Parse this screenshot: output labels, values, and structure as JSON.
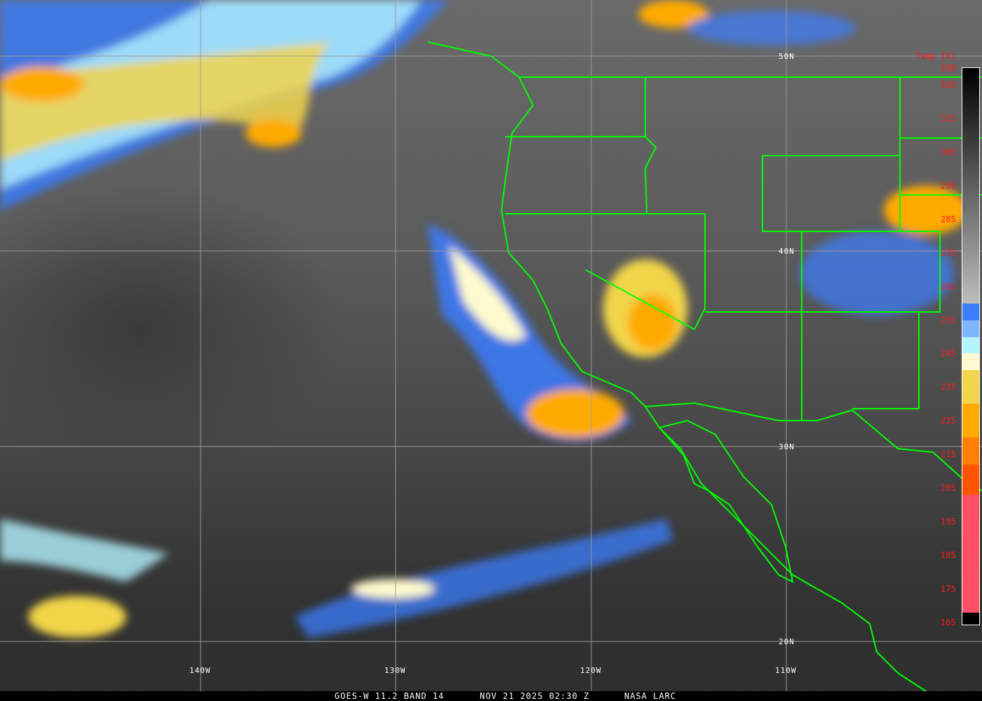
{
  "caption": {
    "satellite": "GOES-W 11.2 BAND 14",
    "datetime": "NOV 21 2025 02:30 Z",
    "source": "NASA LARC"
  },
  "latitude_labels": [
    "50N",
    "40N",
    "30N",
    "20N"
  ],
  "longitude_labels": [
    "140W",
    "130W",
    "120W",
    "110W"
  ],
  "colorbar": {
    "title": "Temp [K]",
    "tick_labels": [
      "330",
      "325",
      "315",
      "305",
      "295",
      "285",
      "275",
      "265",
      "255",
      "245",
      "235",
      "225",
      "215",
      "205",
      "195",
      "185",
      "175",
      "165"
    ],
    "range_k": [
      165,
      330
    ],
    "stops": [
      {
        "from": 330,
        "to": 260,
        "color": "gradient #000000 to #bdbdbd"
      },
      {
        "from": 260,
        "to": 255,
        "color": "#3a7dff"
      },
      {
        "from": 255,
        "to": 250,
        "color": "#7fb6ff"
      },
      {
        "from": 250,
        "to": 245,
        "color": "#b3f4ff"
      },
      {
        "from": 245,
        "to": 240,
        "color": "#fffacd"
      },
      {
        "from": 240,
        "to": 230,
        "color": "#f2d54a"
      },
      {
        "from": 230,
        "to": 220,
        "color": "#ffaa00"
      },
      {
        "from": 220,
        "to": 212,
        "color": "#ff8000"
      },
      {
        "from": 212,
        "to": 203,
        "color": "#ff5500"
      },
      {
        "from": 203,
        "to": 168,
        "color": "#ff5068"
      },
      {
        "from": 168,
        "to": 165,
        "color": "#000000"
      }
    ]
  },
  "colors": {
    "borders": "#00ff00",
    "grid": "#9a9a9a",
    "labels": "#ff1a1a"
  }
}
